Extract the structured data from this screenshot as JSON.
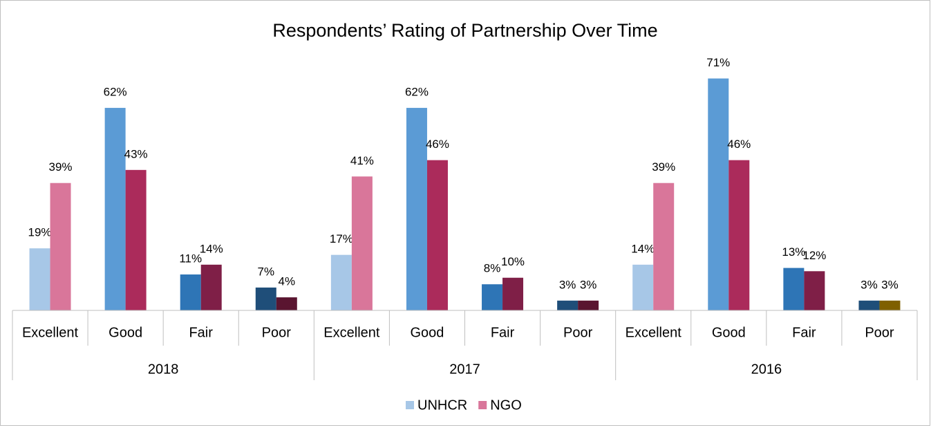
{
  "chart_data": {
    "type": "bar",
    "title": "Respondents’ Rating of Partnership Over Time",
    "categories": [
      "Excellent",
      "Good",
      "Fair",
      "Poor",
      "Excellent",
      "Good",
      "Fair",
      "Poor",
      "Excellent",
      "Good",
      "Fair",
      "Poor"
    ],
    "groups": [
      "2018",
      "2017",
      "2016"
    ],
    "ylim": [
      0,
      80
    ],
    "series": [
      {
        "name": "UNHCR",
        "color": "#a7c7e7",
        "colors": [
          "#a7c7e7",
          "#5b9bd5",
          "#2e75b6",
          "#1f4e79",
          "#a7c7e7",
          "#5b9bd5",
          "#2e75b6",
          "#1f4e79",
          "#a7c7e7",
          "#5b9bd5",
          "#2e75b6",
          "#1f4e79"
        ],
        "values": [
          19,
          62,
          11,
          7,
          17,
          62,
          8,
          3,
          14,
          71,
          13,
          3
        ],
        "value_labels": [
          "19%",
          "62%",
          "11%",
          "7%",
          "17%",
          "62%",
          "8%",
          "3%",
          "14%",
          "71%",
          "13%",
          "3%"
        ]
      },
      {
        "name": "NGO",
        "color": "#d9769a",
        "colors": [
          "#d9769a",
          "#ab2b5b",
          "#7f1f47",
          "#5a1530",
          "#d9769a",
          "#ab2b5b",
          "#7f1f47",
          "#5a1530",
          "#d9769a",
          "#ab2b5b",
          "#7f1f47",
          "#7f6000"
        ],
        "values": [
          39,
          43,
          14,
          4,
          41,
          46,
          10,
          3,
          39,
          46,
          12,
          3
        ],
        "value_labels": [
          "39%",
          "43%",
          "14%",
          "4%",
          "41%",
          "46%",
          "10%",
          "3%",
          "39%",
          "46%",
          "12%",
          "3%"
        ]
      }
    ]
  }
}
